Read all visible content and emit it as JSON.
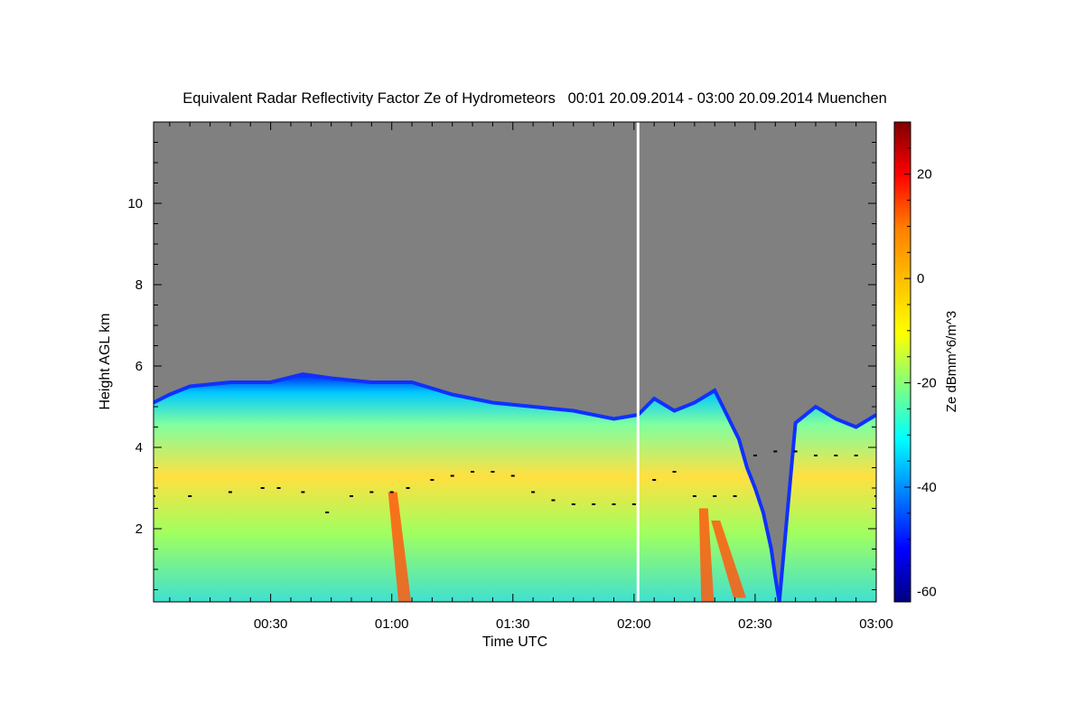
{
  "chart_data": {
    "type": "heatmap",
    "title": "Equivalent Radar Reflectivity Factor Ze of Hydrometeors   00:01 20.09.2014 - 03:00 20.09.2014 Muenchen",
    "xlabel": "Time UTC",
    "ylabel": "Height AGL km",
    "colorbar_label": "Ze dBmm^6/m^3",
    "x_range_minutes": [
      1,
      180
    ],
    "y_range_km": [
      0.2,
      12
    ],
    "x_ticks": [
      {
        "label": "00:30",
        "minutes": 30
      },
      {
        "label": "01:00",
        "minutes": 60
      },
      {
        "label": "01:30",
        "minutes": 90
      },
      {
        "label": "02:00",
        "minutes": 120
      },
      {
        "label": "02:30",
        "minutes": 150
      },
      {
        "label": "03:00",
        "minutes": 180
      }
    ],
    "y_ticks": [
      {
        "label": "2",
        "km": 2
      },
      {
        "label": "4",
        "km": 4
      },
      {
        "label": "6",
        "km": 6
      },
      {
        "label": "8",
        "km": 8
      },
      {
        "label": "10",
        "km": 10
      }
    ],
    "colorbar_range": [
      -62,
      30
    ],
    "colorbar_ticks": [
      {
        "label": "20",
        "value": 20
      },
      {
        "label": "0",
        "value": 0
      },
      {
        "label": "-20",
        "value": -20
      },
      {
        "label": "-40",
        "value": -40
      },
      {
        "label": "-60",
        "value": -60
      }
    ],
    "colormap": [
      "#00007f",
      "#0000ff",
      "#007fff",
      "#00ffff",
      "#7fff7f",
      "#ffff00",
      "#ff7f00",
      "#ff0000",
      "#7f0000"
    ],
    "no_data_color": "#808080",
    "data_gap_minutes": 121,
    "echo_top_km": [
      [
        1,
        5.1
      ],
      [
        5,
        5.3
      ],
      [
        10,
        5.5
      ],
      [
        20,
        5.6
      ],
      [
        30,
        5.6
      ],
      [
        38,
        5.8
      ],
      [
        45,
        5.7
      ],
      [
        55,
        5.6
      ],
      [
        65,
        5.6
      ],
      [
        75,
        5.3
      ],
      [
        85,
        5.1
      ],
      [
        95,
        5.0
      ],
      [
        105,
        4.9
      ],
      [
        115,
        4.7
      ],
      [
        121,
        4.8
      ],
      [
        125,
        5.2
      ],
      [
        130,
        4.9
      ],
      [
        135,
        5.1
      ],
      [
        140,
        5.4
      ],
      [
        142,
        5.0
      ],
      [
        146,
        4.2
      ],
      [
        148,
        3.5
      ],
      [
        150,
        3.0
      ],
      [
        152,
        2.4
      ],
      [
        154,
        1.5
      ],
      [
        155,
        0.8
      ],
      [
        156,
        0.2
      ],
      [
        160,
        4.6
      ],
      [
        165,
        5.0
      ],
      [
        170,
        4.7
      ],
      [
        175,
        4.5
      ],
      [
        180,
        4.8
      ]
    ],
    "cloud_base_km": [
      [
        1,
        2.8
      ],
      [
        10,
        2.8
      ],
      [
        20,
        2.9
      ],
      [
        28,
        3.0
      ],
      [
        32,
        3.0
      ],
      [
        38,
        2.9
      ],
      [
        44,
        2.4
      ],
      [
        50,
        2.8
      ],
      [
        55,
        2.9
      ],
      [
        60,
        2.9
      ],
      [
        64,
        3.0
      ],
      [
        70,
        3.2
      ],
      [
        75,
        3.3
      ],
      [
        80,
        3.4
      ],
      [
        85,
        3.4
      ],
      [
        90,
        3.3
      ],
      [
        95,
        2.9
      ],
      [
        100,
        2.7
      ],
      [
        105,
        2.6
      ],
      [
        110,
        2.6
      ],
      [
        115,
        2.6
      ],
      [
        120,
        2.6
      ],
      [
        125,
        3.2
      ],
      [
        130,
        3.4
      ],
      [
        135,
        2.8
      ],
      [
        140,
        2.8
      ],
      [
        145,
        2.8
      ],
      [
        150,
        3.8
      ],
      [
        155,
        3.9
      ],
      [
        160,
        3.9
      ],
      [
        165,
        3.8
      ],
      [
        170,
        3.8
      ],
      [
        175,
        3.8
      ],
      [
        180,
        2.8
      ]
    ],
    "precip_fallstreaks": [
      {
        "top_minutes": 60,
        "top_km": 2.9,
        "bottom_minutes": 63,
        "bottom_km": 0.2
      },
      {
        "top_minutes": 137,
        "top_km": 2.5,
        "bottom_minutes": 138,
        "bottom_km": 0.2
      },
      {
        "top_minutes": 140,
        "top_km": 2.2,
        "bottom_minutes": 146,
        "bottom_km": 0.3
      }
    ]
  }
}
